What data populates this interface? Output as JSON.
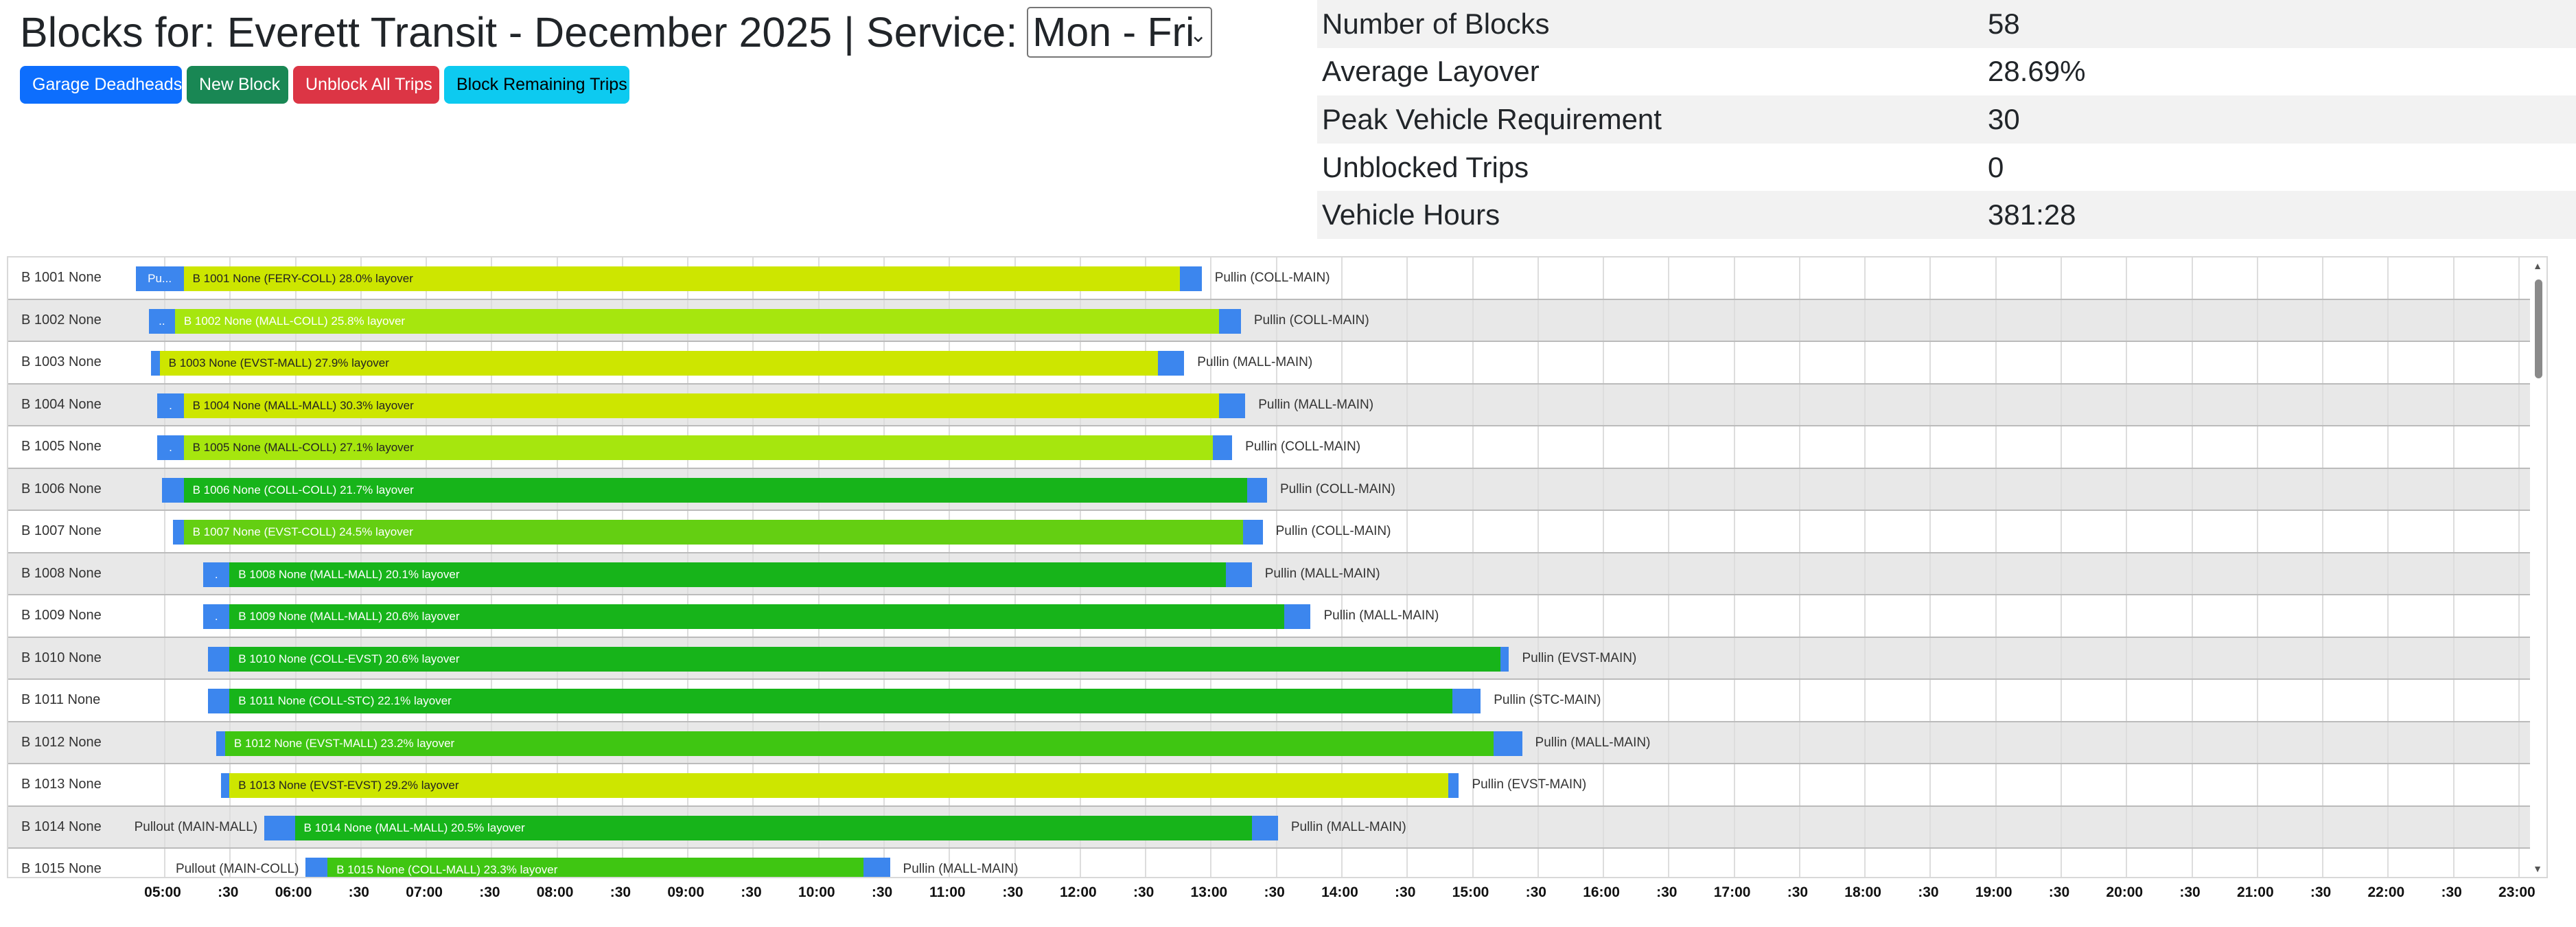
{
  "header": {
    "title": "Blocks for: Everett Transit - December 2025 | Service:",
    "service_value": "Mon - Fri",
    "chevron": "⌄"
  },
  "toolbar": {
    "garage_deadheads": "Garage Deadheads",
    "new_block": "New Block",
    "unblock_all": "Unblock All Trips",
    "block_remaining": "Block Remaining Trips"
  },
  "stats": [
    {
      "label": "Number of Blocks",
      "value": "58"
    },
    {
      "label": "Average Layover",
      "value": "28.69%"
    },
    {
      "label": "Peak Vehicle Requirement",
      "value": "30"
    },
    {
      "label": "Unblocked Trips",
      "value": "0"
    },
    {
      "label": "Vehicle Hours",
      "value": "381:28"
    }
  ],
  "colors": {
    "pull": "#3c86ee",
    "row_odd": "#ffffff",
    "row_even": "#e8e8e8",
    "layover_high": "#cde600",
    "layover_mid": "#a6e60e",
    "layover_low": "#17b41a"
  },
  "axis_ticks": [
    "05:00",
    ":30",
    "06:00",
    ":30",
    "07:00",
    ":30",
    "08:00",
    ":30",
    "09:00",
    ":30",
    "10:00",
    ":30",
    "11:00",
    ":30",
    "12:00",
    ":30",
    "13:00",
    ":30",
    "14:00",
    ":30",
    "15:00",
    ":30",
    "16:00",
    ":30",
    "17:00",
    ":30",
    "18:00",
    ":30",
    "19:00",
    ":30",
    "20:00",
    ":30",
    "21:00",
    ":30",
    "22:00",
    ":30",
    "23:00"
  ],
  "blocks": [
    {
      "name": "B 1001 None",
      "pullout_label": "",
      "pullout_box": "Pu...",
      "bar_label": "B 1001 None (FERY-COLL) 28.0% layover",
      "pullin_label": "Pullin (COLL-MAIN)",
      "pullout_start": "04:47",
      "pullout_end": "05:09",
      "start": "05:09",
      "end": "12:46",
      "pullin_end": "12:56",
      "color": "#cde600",
      "text_color": "#222"
    },
    {
      "name": "B 1002 None",
      "pullout_label": "",
      "pullout_box": "..",
      "bar_label": "B 1002 None (MALL-COLL) 25.8% layover",
      "pullin_label": "Pullin (COLL-MAIN)",
      "pullout_start": "04:53",
      "pullout_end": "05:05",
      "start": "05:05",
      "end": "13:04",
      "pullin_end": "13:14",
      "color": "#a6e60e",
      "text_color": "#fff"
    },
    {
      "name": "B 1003 None",
      "pullout_label": "",
      "pullout_box": "",
      "bar_label": "B 1003 None (EVST-MALL) 27.9% layover",
      "pullin_label": "Pullin (MALL-MAIN)",
      "pullout_start": "04:54",
      "pullout_end": "04:58",
      "start": "04:58",
      "end": "12:36",
      "pullin_end": "12:48",
      "color": "#cde600",
      "text_color": "#222"
    },
    {
      "name": "B 1004 None",
      "pullout_label": "",
      "pullout_box": ".",
      "bar_label": "B 1004 None (MALL-MALL) 30.3% layover",
      "pullin_label": "Pullin (MALL-MAIN)",
      "pullout_start": "04:57",
      "pullout_end": "05:09",
      "start": "05:09",
      "end": "13:04",
      "pullin_end": "13:16",
      "color": "#cde600",
      "text_color": "#222"
    },
    {
      "name": "B 1005 None",
      "pullout_label": "",
      "pullout_box": ".",
      "bar_label": "B 1005 None (MALL-COLL) 27.1% layover",
      "pullin_label": "Pullin (COLL-MAIN)",
      "pullout_start": "04:57",
      "pullout_end": "05:09",
      "start": "05:09",
      "end": "13:01",
      "pullin_end": "13:10",
      "color": "#a6e60e",
      "text_color": "#222"
    },
    {
      "name": "B 1006 None",
      "pullout_label": "",
      "pullout_box": "",
      "bar_label": "B 1006 None (COLL-COLL) 21.7% layover",
      "pullin_label": "Pullin (COLL-MAIN)",
      "pullout_start": "04:59",
      "pullout_end": "05:09",
      "start": "05:09",
      "end": "13:17",
      "pullin_end": "13:26",
      "color": "#17b41a",
      "text_color": "#fff"
    },
    {
      "name": "B 1007 None",
      "pullout_label": "",
      "pullout_box": "",
      "bar_label": "B 1007 None (EVST-COLL) 24.5% layover",
      "pullin_label": "Pullin (COLL-MAIN)",
      "pullout_start": "05:04",
      "pullout_end": "05:09",
      "start": "05:09",
      "end": "13:15",
      "pullin_end": "13:24",
      "color": "#64cf12",
      "text_color": "#fff"
    },
    {
      "name": "B 1008 None",
      "pullout_label": "",
      "pullout_box": ".",
      "bar_label": "B 1008 None (MALL-MALL) 20.1% layover",
      "pullin_label": "Pullin (MALL-MAIN)",
      "pullout_start": "05:18",
      "pullout_end": "05:30",
      "start": "05:30",
      "end": "13:07",
      "pullin_end": "13:19",
      "color": "#17b41a",
      "text_color": "#fff"
    },
    {
      "name": "B 1009 None",
      "pullout_label": "",
      "pullout_box": ".",
      "bar_label": "B 1009 None (MALL-MALL) 20.6% layover",
      "pullin_label": "Pullin (MALL-MAIN)",
      "pullout_start": "05:18",
      "pullout_end": "05:30",
      "start": "05:30",
      "end": "13:34",
      "pullin_end": "13:46",
      "color": "#17b41a",
      "text_color": "#fff"
    },
    {
      "name": "B 1010 None",
      "pullout_label": "",
      "pullout_box": "",
      "bar_label": "B 1010 None (COLL-EVST) 20.6% layover",
      "pullin_label": "Pullin (EVST-MAIN)",
      "pullout_start": "05:20",
      "pullout_end": "05:30",
      "start": "05:30",
      "end": "15:13",
      "pullin_end": "15:17",
      "color": "#17b41a",
      "text_color": "#fff"
    },
    {
      "name": "B 1011 None",
      "pullout_label": "",
      "pullout_box": "",
      "bar_label": "B 1011 None (COLL-STC) 22.1% layover",
      "pullin_label": "Pullin (STC-MAIN)",
      "pullout_start": "05:20",
      "pullout_end": "05:30",
      "start": "05:30",
      "end": "14:51",
      "pullin_end": "15:04",
      "color": "#17b41a",
      "text_color": "#fff"
    },
    {
      "name": "B 1012 None",
      "pullout_label": "",
      "pullout_box": "",
      "bar_label": "B 1012 None (EVST-MALL) 23.2% layover",
      "pullin_label": "Pullin (MALL-MAIN)",
      "pullout_start": "05:24",
      "pullout_end": "05:28",
      "start": "05:28",
      "end": "15:10",
      "pullin_end": "15:23",
      "color": "#3fc612",
      "text_color": "#fff"
    },
    {
      "name": "B 1013 None",
      "pullout_label": "",
      "pullout_box": "",
      "bar_label": "B 1013 None (EVST-EVST) 29.2% layover",
      "pullin_label": "Pullin (EVST-MAIN)",
      "pullout_start": "05:26",
      "pullout_end": "05:30",
      "start": "05:30",
      "end": "14:49",
      "pullin_end": "14:54",
      "color": "#cde600",
      "text_color": "#222"
    },
    {
      "name": "B 1014 None",
      "pullout_label": "Pullout (MAIN-MALL)",
      "pullout_box": "",
      "bar_label": "B 1014 None (MALL-MALL) 20.5% layover",
      "pullin_label": "Pullin (MALL-MAIN)",
      "pullout_start": "05:46",
      "pullout_end": "06:00",
      "start": "06:00",
      "end": "13:19",
      "pullin_end": "13:31",
      "color": "#17b41a",
      "text_color": "#fff"
    },
    {
      "name": "B 1015 None",
      "pullout_label": "Pullout (MAIN-COLL)",
      "pullout_box": "",
      "bar_label": "B 1015 None (COLL-MALL) 23.3% layover",
      "pullin_label": "Pullin (MALL-MAIN)",
      "pullout_start": "06:05",
      "pullout_end": "06:15",
      "start": "06:15",
      "end": "10:21",
      "pullin_end": "10:33",
      "color": "#3fc612",
      "text_color": "#fff"
    }
  ]
}
